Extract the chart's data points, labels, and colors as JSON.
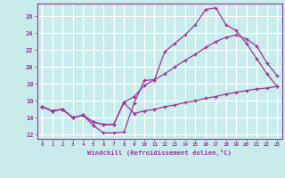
{
  "xlabel": "Windchill (Refroidissement éolien,°C)",
  "background_color": "#c8ecec",
  "line_color": "#993399",
  "grid_color": "#ffffff",
  "xlim": [
    -0.5,
    23.5
  ],
  "ylim": [
    11.5,
    27.5
  ],
  "xticks": [
    0,
    1,
    2,
    3,
    4,
    5,
    6,
    7,
    8,
    9,
    10,
    11,
    12,
    13,
    14,
    15,
    16,
    17,
    18,
    19,
    20,
    21,
    22,
    23
  ],
  "yticks": [
    12,
    14,
    16,
    18,
    20,
    22,
    24,
    26
  ],
  "line1_x": [
    0,
    1,
    2,
    3,
    4,
    5,
    6,
    7,
    8,
    9,
    10,
    11,
    12,
    13,
    14,
    15,
    16,
    17,
    18,
    19,
    20,
    21,
    22,
    23
  ],
  "line1_y": [
    15.3,
    14.8,
    15.0,
    14.0,
    14.3,
    13.1,
    12.2,
    12.2,
    12.3,
    15.7,
    18.4,
    18.5,
    21.8,
    22.8,
    23.8,
    25.0,
    26.8,
    27.0,
    25.0,
    24.3,
    22.8,
    21.0,
    19.2,
    17.7
  ],
  "line2_x": [
    0,
    1,
    2,
    3,
    4,
    5,
    6,
    7,
    8,
    9,
    10,
    11,
    12,
    13,
    14,
    15,
    16,
    17,
    18,
    19,
    20,
    21,
    22,
    23
  ],
  "line2_y": [
    15.3,
    14.8,
    15.0,
    14.0,
    14.3,
    13.5,
    13.2,
    13.2,
    15.8,
    16.5,
    17.8,
    18.5,
    19.2,
    20.0,
    20.8,
    21.5,
    22.3,
    23.0,
    23.5,
    23.8,
    23.3,
    22.5,
    20.5,
    19.0
  ],
  "line3_x": [
    0,
    1,
    2,
    3,
    4,
    5,
    6,
    7,
    8,
    9,
    10,
    11,
    12,
    13,
    14,
    15,
    16,
    17,
    18,
    19,
    20,
    21,
    22,
    23
  ],
  "line3_y": [
    15.3,
    14.8,
    15.0,
    14.0,
    14.3,
    13.5,
    13.2,
    13.2,
    15.8,
    14.5,
    14.8,
    15.0,
    15.3,
    15.5,
    15.8,
    16.0,
    16.3,
    16.5,
    16.8,
    17.0,
    17.2,
    17.4,
    17.5,
    17.7
  ]
}
